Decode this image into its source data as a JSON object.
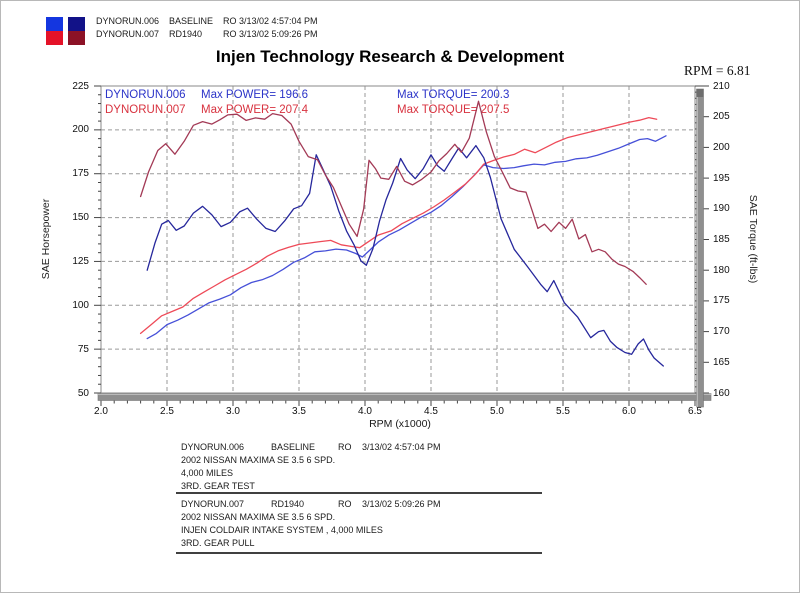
{
  "header": {
    "runs": [
      {
        "name": "DYNORUN.006",
        "variant": "BASELINE",
        "timestamp": "RO  3/13/02 4:57:04 PM"
      },
      {
        "name": "DYNORUN.007",
        "variant": "RD1940",
        "timestamp": "RO  3/13/02 5:09:26 PM"
      }
    ],
    "swatch_colors": {
      "power_blue": "#1436e0",
      "torque_navy": "#121288",
      "power_red": "#e41228",
      "torque_maroon": "#8c1226"
    }
  },
  "title": "Injen Technology Research & Development",
  "rpm_readout": "RPM = 6.81",
  "chart_data": {
    "type": "line",
    "x_axis": {
      "label": "RPM (x1000)",
      "min": 2.0,
      "max": 6.5,
      "tick_step": 0.5,
      "ticks": [
        "2.0",
        "2.5",
        "3.0",
        "3.5",
        "4.0",
        "4.5",
        "5.0",
        "5.5",
        "6.0",
        "6.5"
      ]
    },
    "y_left": {
      "label": "SAE Horsepower",
      "min": 50,
      "max": 225,
      "tick_step": 25,
      "ticks": [
        "225",
        "200",
        "175",
        "150",
        "125",
        "100",
        "75",
        "50"
      ]
    },
    "y_right": {
      "label": "SAE Torque (ft-lbs)",
      "min": 160,
      "max": 210,
      "tick_step": 5,
      "ticks": [
        "210",
        "205",
        "200",
        "195",
        "190",
        "185",
        "180",
        "175",
        "170",
        "165",
        "160"
      ]
    },
    "grid": "dashed",
    "legend": [
      {
        "name": "DYNORUN.006",
        "power_label": "Max POWER= 196.6",
        "torque_label": "Max TORQUE= 200.3",
        "max_power": 196.6,
        "max_torque": 200.3,
        "color": "#2c34c8"
      },
      {
        "name": "DYNORUN.007",
        "power_label": "Max POWER= 207.4",
        "torque_label": "Max TORQUE= 207.5",
        "max_power": 207.4,
        "max_torque": 207.5,
        "color": "#d8323f"
      }
    ],
    "series": [
      {
        "name": "DYNORUN.006 horsepower",
        "axis": "hp",
        "color": "#4650d8",
        "points": [
          [
            2.35,
            81
          ],
          [
            2.42,
            84
          ],
          [
            2.5,
            89
          ],
          [
            2.58,
            91.5
          ],
          [
            2.66,
            94.5
          ],
          [
            2.74,
            98
          ],
          [
            2.82,
            101.5
          ],
          [
            2.9,
            103.5
          ],
          [
            2.98,
            106
          ],
          [
            3.06,
            110
          ],
          [
            3.14,
            113
          ],
          [
            3.22,
            114.5
          ],
          [
            3.3,
            117
          ],
          [
            3.38,
            120.5
          ],
          [
            3.46,
            124.5
          ],
          [
            3.54,
            127
          ],
          [
            3.62,
            130.5
          ],
          [
            3.7,
            131
          ],
          [
            3.78,
            132
          ],
          [
            3.86,
            131.5
          ],
          [
            3.93,
            129.5
          ],
          [
            3.98,
            127.5
          ],
          [
            4.03,
            131
          ],
          [
            4.1,
            136
          ],
          [
            4.18,
            140
          ],
          [
            4.26,
            143
          ],
          [
            4.34,
            146.5
          ],
          [
            4.42,
            150
          ],
          [
            4.5,
            153
          ],
          [
            4.58,
            157
          ],
          [
            4.66,
            162
          ],
          [
            4.74,
            167.5
          ],
          [
            4.82,
            173.5
          ],
          [
            4.9,
            180
          ],
          [
            4.97,
            178.5
          ],
          [
            5.05,
            178
          ],
          [
            5.13,
            178.5
          ],
          [
            5.2,
            179.5
          ],
          [
            5.28,
            180.5
          ],
          [
            5.36,
            180
          ],
          [
            5.44,
            181.5
          ],
          [
            5.52,
            182
          ],
          [
            5.6,
            183.5
          ],
          [
            5.68,
            184
          ],
          [
            5.76,
            185.5
          ],
          [
            5.84,
            187.5
          ],
          [
            5.92,
            189.5
          ],
          [
            6.0,
            192
          ],
          [
            6.08,
            194.5
          ],
          [
            6.14,
            195
          ],
          [
            6.2,
            193.5
          ],
          [
            6.28,
            196.6
          ]
        ]
      },
      {
        "name": "DYNORUN.007 horsepower",
        "axis": "hp",
        "color": "#ee4a58",
        "points": [
          [
            2.3,
            84
          ],
          [
            2.38,
            89
          ],
          [
            2.46,
            94
          ],
          [
            2.54,
            96.5
          ],
          [
            2.62,
            99
          ],
          [
            2.7,
            104
          ],
          [
            2.78,
            107.5
          ],
          [
            2.86,
            111
          ],
          [
            2.94,
            114.5
          ],
          [
            3.02,
            117.5
          ],
          [
            3.1,
            120.5
          ],
          [
            3.18,
            124
          ],
          [
            3.26,
            128
          ],
          [
            3.34,
            131
          ],
          [
            3.42,
            133
          ],
          [
            3.5,
            134.7
          ],
          [
            3.58,
            135.5
          ],
          [
            3.66,
            136.3
          ],
          [
            3.74,
            137
          ],
          [
            3.82,
            134.5
          ],
          [
            3.9,
            133.5
          ],
          [
            3.96,
            132.8
          ],
          [
            4.03,
            136.5
          ],
          [
            4.1,
            140
          ],
          [
            4.2,
            142.5
          ],
          [
            4.28,
            146.5
          ],
          [
            4.36,
            149.5
          ],
          [
            4.44,
            152.5
          ],
          [
            4.52,
            156
          ],
          [
            4.6,
            160
          ],
          [
            4.68,
            164.5
          ],
          [
            4.76,
            169
          ],
          [
            4.84,
            175
          ],
          [
            4.9,
            180.5
          ],
          [
            4.97,
            182.5
          ],
          [
            5.05,
            184.5
          ],
          [
            5.13,
            186
          ],
          [
            5.21,
            189
          ],
          [
            5.29,
            187
          ],
          [
            5.37,
            190
          ],
          [
            5.45,
            193
          ],
          [
            5.53,
            195.5
          ],
          [
            5.61,
            197
          ],
          [
            5.69,
            198.5
          ],
          [
            5.77,
            200
          ],
          [
            5.85,
            201.5
          ],
          [
            5.93,
            203
          ],
          [
            6.01,
            204.5
          ],
          [
            6.08,
            205.5
          ],
          [
            6.15,
            207
          ],
          [
            6.21,
            206
          ]
        ]
      },
      {
        "name": "DYNORUN.006 torque",
        "axis": "tq",
        "color": "#26279c",
        "points": [
          [
            2.35,
            180
          ],
          [
            2.41,
            184.5
          ],
          [
            2.46,
            187.5
          ],
          [
            2.51,
            188.1
          ],
          [
            2.57,
            186.5
          ],
          [
            2.63,
            187.2
          ],
          [
            2.7,
            189.3
          ],
          [
            2.77,
            190.4
          ],
          [
            2.84,
            189
          ],
          [
            2.91,
            187.1
          ],
          [
            2.98,
            187.8
          ],
          [
            3.05,
            189.5
          ],
          [
            3.11,
            190.1
          ],
          [
            3.18,
            188.3
          ],
          [
            3.25,
            186.8
          ],
          [
            3.32,
            186.3
          ],
          [
            3.39,
            188
          ],
          [
            3.46,
            190
          ],
          [
            3.52,
            190.5
          ],
          [
            3.58,
            192.5
          ],
          [
            3.63,
            198.8
          ],
          [
            3.68,
            196.5
          ],
          [
            3.74,
            193.7
          ],
          [
            3.8,
            189.7
          ],
          [
            3.86,
            186.4
          ],
          [
            3.92,
            184
          ],
          [
            3.97,
            181.5
          ],
          [
            4.01,
            180.8
          ],
          [
            4.06,
            183.5
          ],
          [
            4.11,
            188
          ],
          [
            4.16,
            191.5
          ],
          [
            4.21,
            194.2
          ],
          [
            4.27,
            198.2
          ],
          [
            4.32,
            196.3
          ],
          [
            4.38,
            194.9
          ],
          [
            4.44,
            196.5
          ],
          [
            4.5,
            198.8
          ],
          [
            4.55,
            197
          ],
          [
            4.6,
            196.1
          ],
          [
            4.66,
            198.2
          ],
          [
            4.71,
            199.9
          ],
          [
            4.77,
            198.3
          ],
          [
            4.84,
            200.3
          ],
          [
            4.9,
            198.3
          ],
          [
            4.95,
            195.1
          ],
          [
            5.03,
            188.4
          ],
          [
            5.13,
            183.4
          ],
          [
            5.23,
            180.6
          ],
          [
            5.33,
            177.7
          ],
          [
            5.38,
            176.5
          ],
          [
            5.43,
            178.3
          ],
          [
            5.51,
            174.7
          ],
          [
            5.61,
            172.4
          ],
          [
            5.71,
            169
          ],
          [
            5.77,
            170
          ],
          [
            5.81,
            170.2
          ],
          [
            5.86,
            168.4
          ],
          [
            5.91,
            167.4
          ],
          [
            5.97,
            166.6
          ],
          [
            6.02,
            166.3
          ],
          [
            6.07,
            168
          ],
          [
            6.11,
            168.8
          ],
          [
            6.15,
            167
          ],
          [
            6.19,
            165.7
          ],
          [
            6.26,
            164.4
          ]
        ]
      },
      {
        "name": "DYNORUN.007 torque",
        "axis": "tq",
        "color": "#a33a56",
        "points": [
          [
            2.3,
            192
          ],
          [
            2.36,
            196
          ],
          [
            2.43,
            199.5
          ],
          [
            2.49,
            200.6
          ],
          [
            2.56,
            198.9
          ],
          [
            2.63,
            201
          ],
          [
            2.7,
            203.6
          ],
          [
            2.77,
            204.2
          ],
          [
            2.84,
            203.8
          ],
          [
            2.9,
            204.5
          ],
          [
            2.96,
            205.3
          ],
          [
            3.03,
            205.4
          ],
          [
            3.1,
            204.4
          ],
          [
            3.17,
            204.8
          ],
          [
            3.24,
            204.6
          ],
          [
            3.3,
            205.5
          ],
          [
            3.37,
            205.2
          ],
          [
            3.44,
            203.8
          ],
          [
            3.5,
            201
          ],
          [
            3.57,
            198.5
          ],
          [
            3.64,
            198
          ],
          [
            3.7,
            195.5
          ],
          [
            3.76,
            193.5
          ],
          [
            3.82,
            190.5
          ],
          [
            3.88,
            187.5
          ],
          [
            3.94,
            185.5
          ],
          [
            3.99,
            190
          ],
          [
            4.03,
            197.9
          ],
          [
            4.08,
            196.5
          ],
          [
            4.12,
            195
          ],
          [
            4.18,
            194.8
          ],
          [
            4.24,
            196.9
          ],
          [
            4.3,
            194.5
          ],
          [
            4.36,
            193.9
          ],
          [
            4.43,
            194.8
          ],
          [
            4.5,
            196
          ],
          [
            4.56,
            197.8
          ],
          [
            4.62,
            199
          ],
          [
            4.68,
            200.5
          ],
          [
            4.73,
            199.2
          ],
          [
            4.79,
            201.5
          ],
          [
            4.86,
            207.5
          ],
          [
            4.92,
            202.5
          ],
          [
            4.98,
            198.5
          ],
          [
            5.04,
            196
          ],
          [
            5.1,
            193.4
          ],
          [
            5.16,
            192.9
          ],
          [
            5.22,
            192.7
          ],
          [
            5.27,
            189.5
          ],
          [
            5.31,
            186.8
          ],
          [
            5.36,
            187.5
          ],
          [
            5.41,
            186.3
          ],
          [
            5.47,
            187.8
          ],
          [
            5.52,
            186.8
          ],
          [
            5.57,
            188.3
          ],
          [
            5.62,
            185.1
          ],
          [
            5.67,
            185.8
          ],
          [
            5.72,
            183
          ],
          [
            5.77,
            183.4
          ],
          [
            5.82,
            183
          ],
          [
            5.87,
            181.8
          ],
          [
            5.92,
            181
          ],
          [
            5.97,
            180.6
          ],
          [
            6.03,
            179.8
          ],
          [
            6.08,
            178.8
          ],
          [
            6.13,
            177.7
          ]
        ]
      }
    ]
  },
  "info_blocks": [
    {
      "run": "DYNORUN.006",
      "variant": "BASELINE",
      "ro_label": "RO",
      "timestamp": "3/13/02 4:57:04 PM",
      "lines": [
        "2002 NISSAN MAXIMA SE 3.5 6 SPD.",
        "4,000 MILES",
        "3RD. GEAR TEST"
      ]
    },
    {
      "run": "DYNORUN.007",
      "variant": "RD1940",
      "ro_label": "RO",
      "timestamp": "3/13/02 5:09:26 PM",
      "lines": [
        "2002 NISSAN MAXIMA SE 3.5 6 SPD.",
        "INJEN COLDAIR INTAKE SYSTEM , 4,000 MILES",
        "3RD. GEAR PULL"
      ]
    }
  ]
}
